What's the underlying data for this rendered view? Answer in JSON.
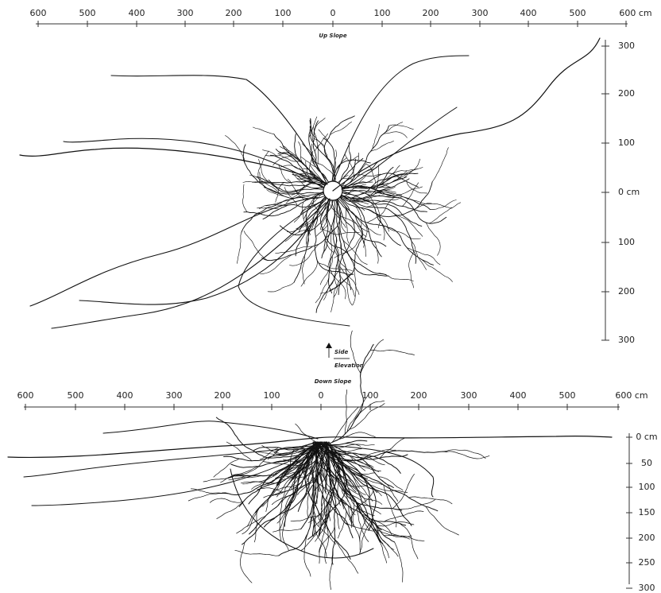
{
  "top_panel": {
    "x_axis_labels": [
      "600",
      "500",
      "400",
      "300",
      "200",
      "100",
      "0",
      "100",
      "200",
      "300",
      "400",
      "500",
      "600 cm"
    ],
    "y_axis_labels": [
      "300",
      "200",
      "100",
      "0 cm",
      "100",
      "200",
      "300"
    ],
    "up_label": "Up Slope",
    "side_label": "Side",
    "elevation_label": "Elevation",
    "down_label": "Down Slope"
  },
  "bottom_panel": {
    "x_axis_labels": [
      "600",
      "500",
      "400",
      "300",
      "200",
      "100",
      "0",
      "100",
      "200",
      "300",
      "400",
      "500",
      "600 cm"
    ],
    "y_axis_labels": [
      "0 cm",
      "50",
      "100",
      "150",
      "200",
      "250",
      "300"
    ]
  }
}
